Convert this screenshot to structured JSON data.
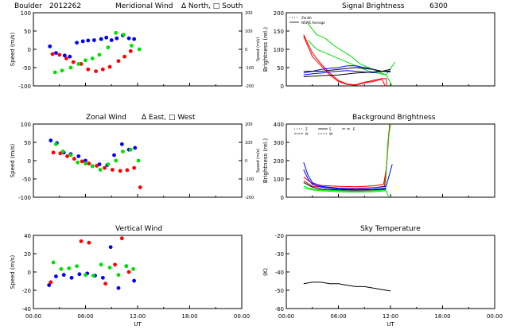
{
  "figure": {
    "header_site": "Boulder",
    "header_date": "2012262",
    "header_meridional": "Meridional Wind",
    "header_meridional_legend": "∆ North, □ South",
    "zonal_title": "Zonal Wind",
    "zonal_legend": "∆ East, □ West",
    "vertical_title": "Vertical Wind",
    "signal_title": "Signal Brightness",
    "signal_wavelength": "6300",
    "background_title": "Background Brightness",
    "sky_title": "Sky Temperature",
    "colors": {
      "red": "#ff0000",
      "green": "#00e000",
      "blue": "#0000ff",
      "black": "#000000"
    }
  },
  "chart_data": [
    {
      "id": "meridional",
      "type": "scatter",
      "title": "Meridional Wind",
      "ylabel": "Speed (m/s)",
      "y2label": "Speed (m/s)",
      "xlabel": "",
      "xlim": [
        0,
        24
      ],
      "ylim": [
        -100,
        100
      ],
      "y2lim": [
        -200,
        200
      ],
      "xticks": [],
      "yticks": [
        "100",
        "50",
        "0",
        "-50",
        "-100"
      ],
      "y2ticks": [
        "200",
        "100",
        "0",
        "-100",
        "-200"
      ],
      "series": [
        {
          "color": "#0000ff",
          "x": [
            1.9,
            2.6,
            3.6,
            4.2,
            5.0,
            5.7,
            6.3,
            7.0,
            7.8,
            8.4,
            9.0,
            9.6,
            10.3,
            11.0,
            11.6
          ],
          "y": [
            8,
            -10,
            -17,
            -20,
            18,
            22,
            24,
            25,
            28,
            32,
            25,
            30,
            38,
            30,
            28
          ]
        },
        {
          "color": "#ff0000",
          "x": [
            2.2,
            3.0,
            3.8,
            4.6,
            5.5,
            6.3,
            7.2,
            8.0,
            8.8,
            9.8,
            10.5,
            11.2
          ],
          "y": [
            -13,
            -15,
            -25,
            -35,
            -40,
            -55,
            -60,
            -55,
            -48,
            -32,
            -20,
            -5
          ]
        },
        {
          "color": "#00e000",
          "x": [
            2.5,
            3.3,
            4.3,
            5.2,
            6.0,
            6.8,
            7.6,
            8.6,
            9.5,
            10.4,
            11.3,
            12.2
          ],
          "y": [
            -63,
            -58,
            -50,
            -40,
            -30,
            -25,
            -15,
            5,
            45,
            40,
            10,
            0
          ]
        }
      ]
    },
    {
      "id": "zonal",
      "type": "scatter",
      "title": "Zonal Wind",
      "ylabel": "Speed (m/s)",
      "y2label": "Speed (m/s)",
      "xlabel": "",
      "xlim": [
        0,
        24
      ],
      "ylim": [
        -100,
        100
      ],
      "y2lim": [
        -200,
        200
      ],
      "xticks": [],
      "yticks": [
        "100",
        "50",
        "0",
        "-50",
        "-100"
      ],
      "y2ticks": [
        "200",
        "100",
        "0",
        "-100",
        "-200"
      ],
      "series": [
        {
          "color": "#0000ff",
          "x": [
            2.0,
            2.7,
            3.5,
            4.3,
            5.2,
            6.0,
            6.8,
            7.6,
            8.5,
            9.3,
            10.2,
            11.0,
            11.7
          ],
          "y": [
            55,
            48,
            22,
            18,
            12,
            0,
            -15,
            -10,
            -12,
            15,
            45,
            30,
            35
          ]
        },
        {
          "color": "#ff0000",
          "x": [
            2.3,
            3.1,
            3.9,
            4.7,
            5.6,
            6.4,
            7.3,
            8.2,
            9.1,
            10.0,
            10.8,
            11.6,
            12.3
          ],
          "y": [
            22,
            20,
            12,
            5,
            -2,
            -8,
            -14,
            -20,
            -25,
            -28,
            -26,
            -20,
            -73
          ]
        },
        {
          "color": "#00e000",
          "x": [
            2.6,
            3.4,
            4.3,
            5.1,
            6.0,
            6.8,
            7.7,
            8.6,
            9.5,
            10.3,
            11.2,
            12.1
          ],
          "y": [
            45,
            25,
            15,
            -5,
            -8,
            -15,
            -25,
            -10,
            0,
            25,
            30,
            0
          ]
        }
      ]
    },
    {
      "id": "vertical",
      "type": "scatter",
      "title": "Vertical Wind",
      "ylabel": "Speed (m/s)",
      "xlabel": "UT",
      "xlim": [
        0,
        24
      ],
      "ylim": [
        -50,
        50
      ],
      "xticks": [
        "00:00",
        "06:00",
        "12:00",
        "18:00",
        "00:00"
      ],
      "yticks": [
        "40",
        "20",
        "0",
        "-20",
        "-40"
      ],
      "series": [
        {
          "color": "#0000ff",
          "x": [
            1.8,
            2.6,
            3.5,
            4.4,
            5.3,
            6.2,
            7.1,
            8.0,
            8.9,
            9.8,
            10.7,
            11.6
          ],
          "y": [
            -18,
            -6,
            -4,
            -8,
            -3,
            -2,
            -5,
            -8,
            34,
            -22,
            8,
            -12
          ]
        },
        {
          "color": "#ff0000",
          "x": [
            2.0,
            5.5,
            6.4,
            8.3,
            9.4,
            10.2,
            11.0
          ],
          "y": [
            -14,
            42,
            40,
            -16,
            10,
            46,
            0
          ]
        },
        {
          "color": "#00e000",
          "x": [
            2.3,
            3.2,
            4.1,
            5.0,
            6.0,
            6.9,
            7.8,
            8.8,
            9.8,
            10.7,
            11.5
          ],
          "y": [
            13,
            4,
            5,
            8,
            -4,
            -5,
            10,
            6,
            -4,
            8,
            4
          ]
        }
      ]
    },
    {
      "id": "signal",
      "type": "line",
      "title": "Signal Brightness",
      "ylabel": "Brightness (rel.)",
      "xlabel": "",
      "xlim": [
        0,
        24
      ],
      "ylim": [
        0,
        200
      ],
      "xticks": [],
      "yticks": [
        "200",
        "150",
        "100",
        "50",
        "0"
      ],
      "legend": [
        "Zenith",
        "NSWE Average"
      ],
      "series": [
        {
          "color": "#ff0000",
          "x": [
            2.0,
            3.0,
            4.0,
            5.0,
            6.0,
            7.0,
            8.0,
            9.0,
            10.0,
            11.0,
            11.5,
            11.6
          ],
          "y": [
            140,
            90,
            60,
            35,
            15,
            5,
            3,
            10,
            15,
            20,
            20,
            0
          ]
        },
        {
          "color": "#ff0000",
          "x": [
            2.0,
            3.0,
            4.0,
            5.0,
            6.0,
            7.0,
            8.0,
            9.0,
            10.0,
            11.0,
            11.4
          ],
          "y": [
            135,
            80,
            55,
            30,
            12,
            4,
            2,
            8,
            12,
            18,
            0
          ]
        },
        {
          "color": "#00e000",
          "x": [
            2.5,
            3.5,
            4.5,
            5.5,
            6.5,
            7.5,
            8.5,
            9.5,
            10.5,
            11.5,
            12.5
          ],
          "y": [
            170,
            140,
            130,
            110,
            95,
            80,
            60,
            50,
            40,
            30,
            65
          ]
        },
        {
          "color": "#00e000",
          "x": [
            2.5,
            3.5,
            4.5,
            5.5,
            6.5,
            7.5,
            8.5,
            9.5,
            10.5,
            11.5,
            12.2
          ],
          "y": [
            125,
            100,
            90,
            80,
            70,
            60,
            50,
            40,
            35,
            30,
            0
          ]
        },
        {
          "color": "#0000ff",
          "x": [
            2.0,
            3.0,
            4.0,
            5.0,
            6.0,
            7.0,
            8.0,
            9.0,
            10.0,
            11.0,
            12.0
          ],
          "y": [
            35,
            40,
            45,
            48,
            50,
            55,
            55,
            50,
            45,
            40,
            40
          ]
        },
        {
          "color": "#0000ff",
          "x": [
            2.0,
            3.0,
            4.0,
            5.0,
            6.0,
            7.0,
            8.0,
            9.0,
            10.0,
            11.0,
            12.0
          ],
          "y": [
            30,
            33,
            35,
            38,
            40,
            42,
            40,
            38,
            36,
            40,
            38
          ]
        },
        {
          "color": "#000000",
          "x": [
            2.0,
            4.0,
            6.0,
            8.0,
            10.0,
            11.0,
            12.0
          ],
          "y": [
            40,
            40,
            45,
            50,
            45,
            40,
            45
          ]
        },
        {
          "color": "#000000",
          "x": [
            2.0,
            4.0,
            6.0,
            8.0,
            10.0,
            11.0,
            12.0
          ],
          "y": [
            25,
            28,
            30,
            35,
            38,
            40,
            40
          ]
        }
      ]
    },
    {
      "id": "background",
      "type": "line",
      "title": "Background Brightness",
      "ylabel": "Brightness (rel.)",
      "xlabel": "",
      "xlim": [
        0,
        24
      ],
      "ylim": [
        0,
        400
      ],
      "xticks": [],
      "yticks": [
        "400",
        "300",
        "200",
        "100",
        "0"
      ],
      "legend": [
        "Z",
        "N",
        "S",
        "W",
        "E"
      ],
      "series": [
        {
          "color": "#ff0000",
          "x": [
            2.0,
            3.0,
            4.0,
            6.0,
            8.0,
            10.0,
            11.2,
            11.5,
            11.8,
            12.0
          ],
          "y": [
            110,
            75,
            65,
            60,
            58,
            62,
            70,
            150,
            350,
            400
          ]
        },
        {
          "color": "#ff0000",
          "x": [
            2.0,
            3.0,
            4.0,
            6.0,
            8.0,
            10.0,
            11.3,
            11.6,
            11.9
          ],
          "y": [
            90,
            60,
            55,
            50,
            48,
            52,
            60,
            200,
            400
          ]
        },
        {
          "color": "#00e000",
          "x": [
            2.0,
            3.0,
            4.0,
            6.0,
            8.0,
            10.0,
            11.4,
            11.7,
            12.0
          ],
          "y": [
            60,
            45,
            40,
            35,
            32,
            35,
            40,
            300,
            400
          ]
        },
        {
          "color": "#00e000",
          "x": [
            2.0,
            3.0,
            4.0,
            6.0,
            8.0,
            10.0,
            11.5,
            11.8
          ],
          "y": [
            50,
            40,
            35,
            30,
            28,
            30,
            35,
            0
          ]
        },
        {
          "color": "#0000ff",
          "x": [
            2.0,
            2.5,
            3.0,
            4.0,
            6.0,
            8.0,
            10.0,
            11.5,
            12.2
          ],
          "y": [
            190,
            120,
            80,
            60,
            50,
            45,
            50,
            60,
            180
          ]
        },
        {
          "color": "#0000ff",
          "x": [
            2.0,
            2.5,
            3.0,
            4.0,
            6.0,
            8.0,
            10.0,
            11.5
          ],
          "y": [
            150,
            100,
            70,
            55,
            45,
            40,
            42,
            50
          ]
        },
        {
          "color": "#000000",
          "x": [
            2.0,
            3.0,
            4.0,
            6.0,
            8.0,
            10.0,
            11.5
          ],
          "y": [
            80,
            55,
            45,
            40,
            38,
            40,
            45
          ]
        }
      ]
    },
    {
      "id": "sky",
      "type": "line",
      "title": "Sky Temperature",
      "ylabel": "(K)",
      "xlabel": "UT",
      "xlim": [
        0,
        24
      ],
      "ylim": [
        -60,
        -10
      ],
      "xticks": [
        "00:00",
        "06:00",
        "12:00",
        "18:00",
        "00:00"
      ],
      "yticks": [
        "-20",
        "-30",
        "-40",
        "-50",
        "-60"
      ],
      "series": [
        {
          "color": "#000000",
          "x": [
            2.0,
            3.0,
            4.0,
            5.0,
            6.0,
            7.0,
            8.0,
            9.0,
            10.0,
            11.0,
            12.0
          ],
          "y": [
            -43,
            -42,
            -42,
            -43,
            -43,
            -44,
            -45,
            -45,
            -46,
            -47,
            -48
          ]
        }
      ]
    }
  ]
}
